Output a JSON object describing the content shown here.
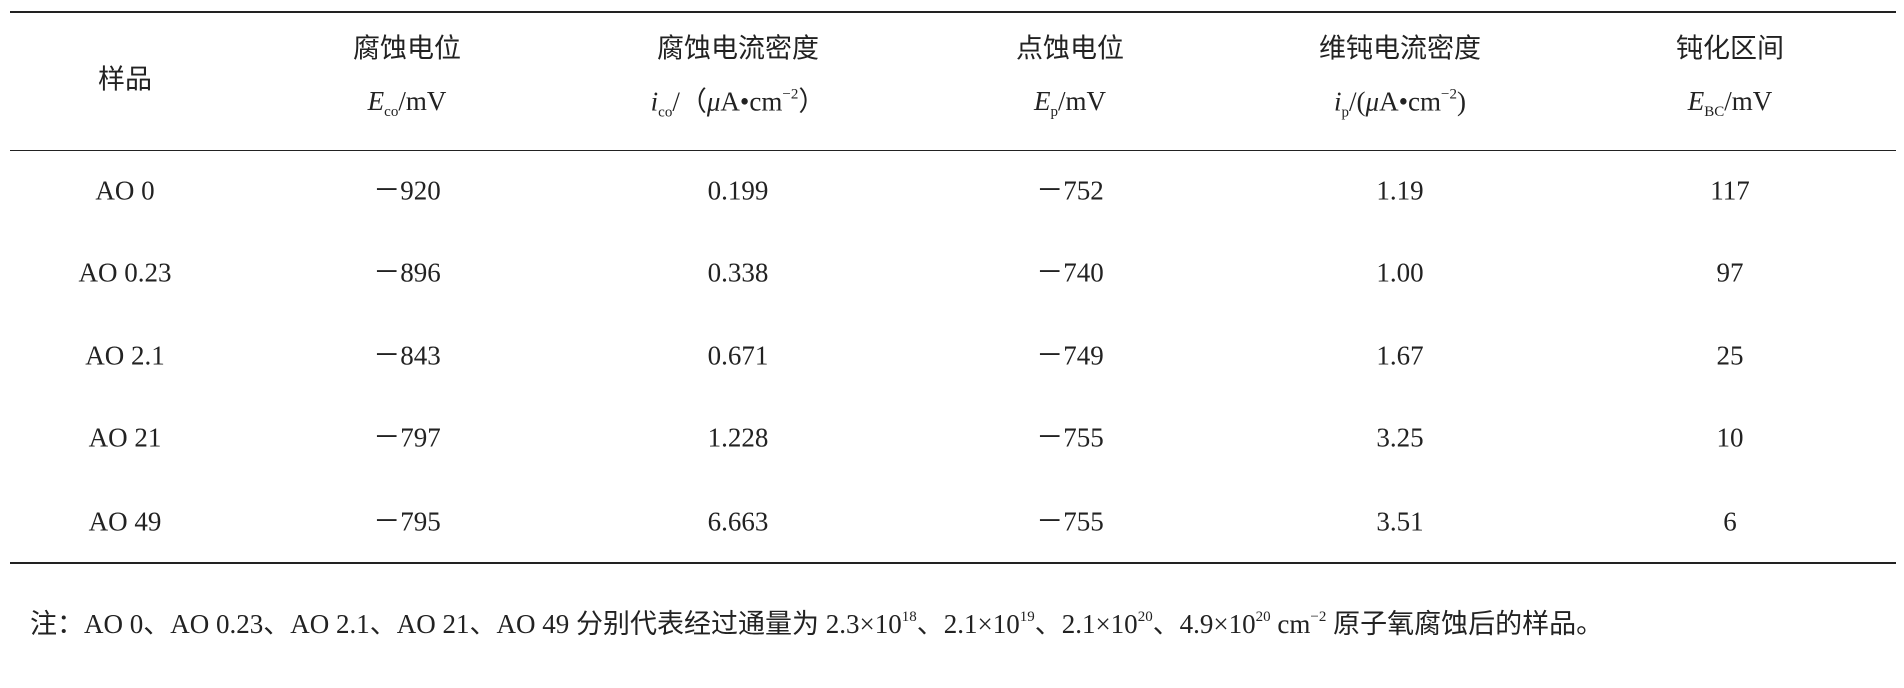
{
  "table": {
    "columns": [
      {
        "name": "样品"
      },
      {
        "name": "腐蚀电位",
        "unit": [
          {
            "text": "E",
            "style": "italic"
          },
          {
            "text": "co",
            "style": "sub"
          },
          {
            "text": "/mV"
          }
        ]
      },
      {
        "name": "腐蚀电流密度",
        "unit": [
          {
            "text": "i",
            "style": "italic"
          },
          {
            "text": "co",
            "style": "sub"
          },
          {
            "text": "/（"
          },
          {
            "text": "μ",
            "style": "italic"
          },
          {
            "text": "A•cm"
          },
          {
            "text": "−2",
            "style": "sup"
          },
          {
            "text": "）"
          }
        ]
      },
      {
        "name": "点蚀电位",
        "unit": [
          {
            "text": "E",
            "style": "italic"
          },
          {
            "text": "p",
            "style": "sub"
          },
          {
            "text": "/mV"
          }
        ]
      },
      {
        "name": "维钝电流密度",
        "unit": [
          {
            "text": "i",
            "style": "italic"
          },
          {
            "text": "p",
            "style": "sub"
          },
          {
            "text": "/("
          },
          {
            "text": "μ",
            "style": "italic"
          },
          {
            "text": "A•cm"
          },
          {
            "text": "−2",
            "style": "sup"
          },
          {
            "text": ")"
          }
        ]
      },
      {
        "name": "钝化区间",
        "unit": [
          {
            "text": "E",
            "style": "italic"
          },
          {
            "text": "BC",
            "style": "sub"
          },
          {
            "text": "/mV"
          }
        ]
      }
    ],
    "rows": [
      [
        "AO 0",
        "－920",
        "0.199",
        "－752",
        "1.19",
        "117"
      ],
      [
        "AO 0.23",
        "－896",
        "0.338",
        "－740",
        "1.00",
        "97"
      ],
      [
        "AO 2.1",
        "－843",
        "0.671",
        "－749",
        "1.67",
        "25"
      ],
      [
        "AO 21",
        "－797",
        "1.228",
        "－755",
        "3.25",
        "10"
      ],
      [
        "AO 49",
        "－795",
        "6.663",
        "－755",
        "3.51",
        "6"
      ]
    ]
  },
  "note": [
    {
      "text": "注：AO 0、AO 0.23、AO 2.1、AO 21、AO 49 分别代表经过通量为 2.3×10"
    },
    {
      "text": "18",
      "style": "sup"
    },
    {
      "text": "、2.1×10"
    },
    {
      "text": "19",
      "style": "sup"
    },
    {
      "text": "、2.1×10"
    },
    {
      "text": "20",
      "style": "sup"
    },
    {
      "text": "、4.9×10"
    },
    {
      "text": "20",
      "style": "sup"
    },
    {
      "text": " cm"
    },
    {
      "text": "−2",
      "style": "sup"
    },
    {
      "text": " 原子氧腐蚀后的样品。"
    }
  ]
}
